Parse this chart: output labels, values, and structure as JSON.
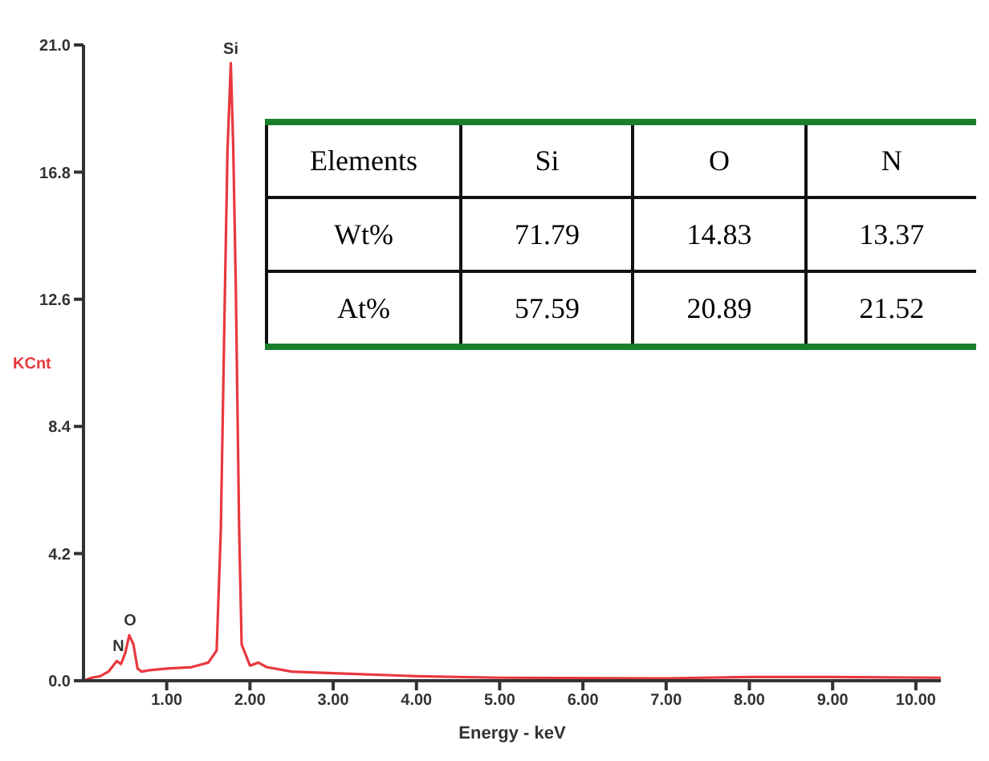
{
  "chart_data": [
    {
      "type": "line",
      "xlabel": "Energy - keV",
      "ylabel": "KCnt",
      "marker": "none",
      "line_style": "solid",
      "x": [
        0,
        0.1,
        0.2,
        0.3,
        0.4,
        0.45,
        0.5,
        0.55,
        0.6,
        0.65,
        0.7,
        0.8,
        1.0,
        1.3,
        1.5,
        1.6,
        1.65,
        1.7,
        1.73,
        1.77,
        1.8,
        1.83,
        1.87,
        1.9,
        2.0,
        2.1,
        2.2,
        2.5,
        3.0,
        4.0,
        5.0,
        7.0,
        8.0,
        9.0,
        10.3
      ],
      "series": [
        {
          "color": "#e8383d",
          "values": [
            0,
            0.1,
            0.15,
            0.3,
            0.65,
            0.55,
            0.9,
            1.5,
            1.2,
            0.4,
            0.3,
            0.35,
            0.4,
            0.45,
            0.6,
            1.0,
            5,
            13,
            17.5,
            20.4,
            17.5,
            13,
            5,
            1.2,
            0.5,
            0.6,
            0.45,
            0.3,
            0.25,
            0.15,
            0.1,
            0.08,
            0.12,
            0.12,
            0.1
          ]
        }
      ],
      "xlim": [
        0,
        10.3
      ],
      "xticks": [
        {
          "value": 1,
          "label": "1.00"
        },
        {
          "value": 2,
          "label": "2.00"
        },
        {
          "value": 3,
          "label": "3.00"
        },
        {
          "value": 4,
          "label": "4.00"
        },
        {
          "value": 5,
          "label": "5.00"
        },
        {
          "value": 6,
          "label": "6.00"
        },
        {
          "value": 7,
          "label": "7.00"
        },
        {
          "value": 8,
          "label": "8.00"
        },
        {
          "value": 9,
          "label": "9.00"
        },
        {
          "value": 10,
          "label": "10.00"
        }
      ],
      "ylim": [
        0,
        21
      ],
      "yticks": [
        {
          "value": 0,
          "label": "0.0"
        },
        4.2,
        8.4,
        12.6,
        16.8,
        {
          "value": 21,
          "label": "21.0"
        }
      ],
      "annotations": [
        {
          "text": "Si",
          "x": 1.77,
          "y": 20.4
        },
        {
          "text": "O",
          "x": 0.56,
          "y": 1.5
        },
        {
          "text": "N",
          "x": 0.42,
          "y": 0.65
        }
      ]
    },
    {
      "type": "other",
      "annotations": [
        "Elements",
        "Si",
        "O",
        "N",
        "Wt%",
        "71.79",
        "14.83",
        "13.37",
        "At%",
        "57.59",
        "20.89",
        "21.52"
      ]
    }
  ]
}
